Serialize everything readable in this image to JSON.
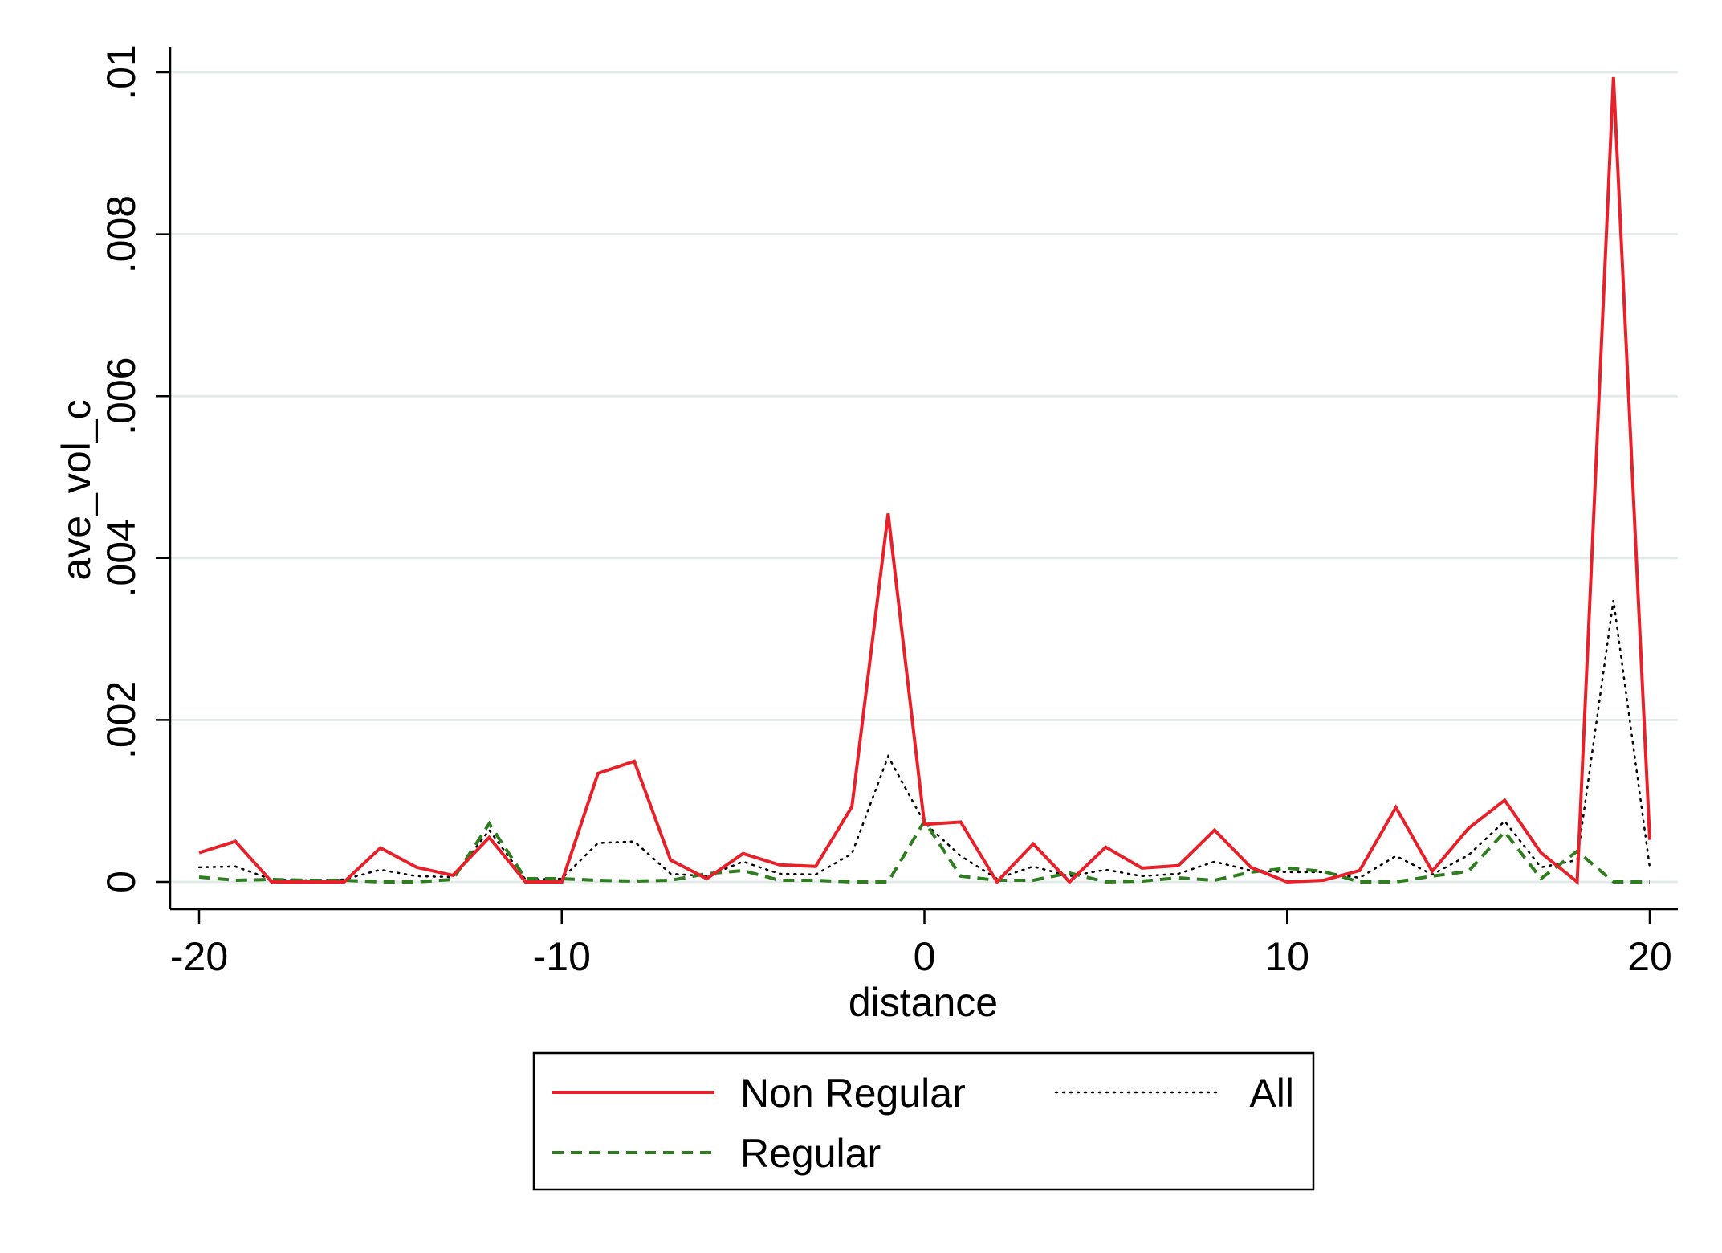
{
  "chart_data": {
    "type": "line",
    "title": "",
    "xlabel": "distance",
    "ylabel": "ave_vol_c",
    "xlim": [
      -20,
      20
    ],
    "ylim": [
      0,
      0.01
    ],
    "grid": true,
    "legend_position": "bottom",
    "x_ticks": [
      -20,
      -10,
      0,
      10,
      20
    ],
    "x_tick_labels": [
      "-20",
      "-10",
      "0",
      "10",
      "20"
    ],
    "y_ticks": [
      0,
      0.002,
      0.004,
      0.006,
      0.008,
      0.01
    ],
    "y_tick_labels": [
      "0",
      ".002",
      ".004",
      ".006",
      ".008",
      ".01"
    ],
    "x": [
      -20,
      -19,
      -18,
      -17,
      -16,
      -15,
      -14,
      -13,
      -12,
      -11,
      -10,
      -9,
      -8,
      -7,
      -6,
      -5,
      -4,
      -3,
      -2,
      -1,
      0,
      1,
      2,
      3,
      4,
      5,
      6,
      7,
      8,
      9,
      10,
      11,
      12,
      13,
      14,
      15,
      16,
      17,
      18,
      19,
      20
    ],
    "series": [
      {
        "name": "Non Regular",
        "color": "#e8202a",
        "style": "solid",
        "values": [
          0.00036,
          0.0005,
          0.0,
          0.0,
          0.0,
          0.00042,
          0.00018,
          8e-05,
          0.00055,
          0.0,
          0.0,
          0.00134,
          0.00149,
          0.00027,
          4e-05,
          0.00035,
          0.00021,
          0.00019,
          0.00093,
          0.00455,
          0.00071,
          0.00074,
          0.0,
          0.00047,
          0.0,
          0.00043,
          0.00017,
          0.0002,
          0.00064,
          0.00018,
          0.0,
          2e-05,
          0.00014,
          0.00092,
          0.00013,
          0.00066,
          0.00101,
          0.00036,
          0.0,
          0.00994,
          0.00052
        ]
      },
      {
        "name": "Regular",
        "color": "#2e7d1e",
        "style": "dashed",
        "values": [
          6e-05,
          2e-05,
          3e-05,
          2e-05,
          2e-05,
          0.0,
          0.0,
          3e-05,
          0.00072,
          4e-05,
          4e-05,
          2e-05,
          1e-05,
          2e-05,
          0.0001,
          0.00014,
          2e-05,
          2e-05,
          0.0,
          0.0,
          0.00075,
          7e-05,
          2e-05,
          2e-05,
          0.00011,
          0.0,
          1e-05,
          5e-05,
          2e-05,
          0.00012,
          0.00017,
          0.00013,
          0.0,
          0.0,
          7e-05,
          0.00013,
          0.00062,
          4e-05,
          0.00038,
          0.0,
          0.0
        ]
      },
      {
        "name": "All",
        "color": "#000000",
        "style": "dotted",
        "values": [
          0.00018,
          0.00019,
          3e-05,
          2e-05,
          3e-05,
          0.00015,
          7e-05,
          6e-05,
          0.00064,
          3e-05,
          4e-05,
          0.00048,
          0.0005,
          0.0001,
          7e-05,
          0.00025,
          0.0001,
          9e-05,
          0.00035,
          0.00155,
          0.00073,
          0.00032,
          4e-05,
          0.00019,
          7e-05,
          0.00015,
          7e-05,
          0.0001,
          0.00025,
          0.00014,
          0.00012,
          0.00012,
          5e-05,
          0.00032,
          9e-05,
          0.00033,
          0.00075,
          0.00018,
          0.00027,
          0.00348,
          0.00018
        ]
      }
    ]
  }
}
